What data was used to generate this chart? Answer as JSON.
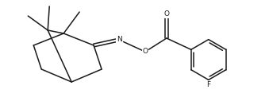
{
  "bg_color": "#ffffff",
  "line_color": "#1a1a1a",
  "line_width": 1.1,
  "font_size": 6.5,
  "figsize": [
    3.39,
    1.37
  ],
  "dpi": 100,
  "xlim": [
    0,
    10
  ],
  "ylim": [
    0,
    4.05
  ]
}
